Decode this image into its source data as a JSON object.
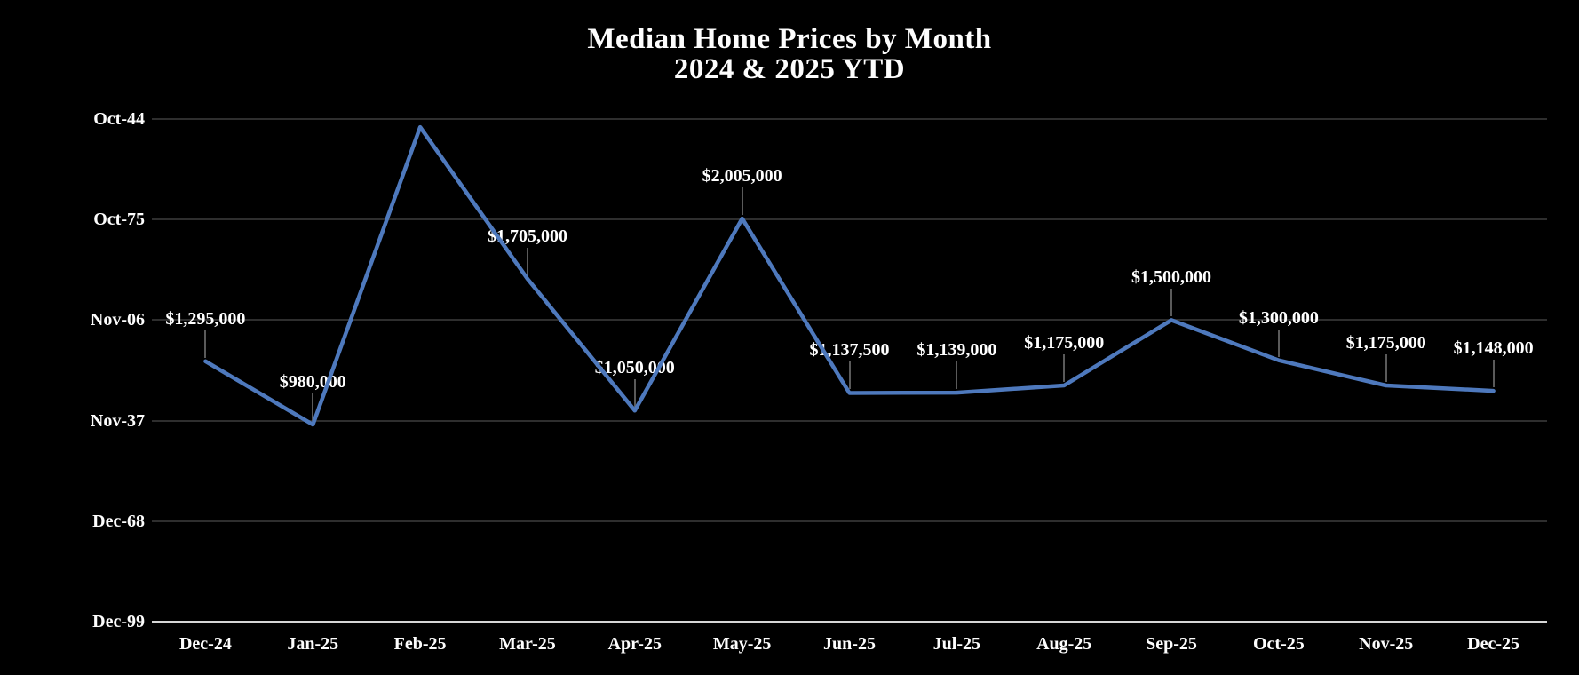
{
  "chart_data": {
    "type": "line",
    "title": "Median Home Prices by Month",
    "subtitle": "2024 & 2025 YTD",
    "categories": [
      "Dec-24",
      "Jan-25",
      "Feb-25",
      "Mar-25",
      "Apr-25",
      "May-25",
      "Jun-25",
      "Jul-25",
      "Aug-25",
      "Sep-25",
      "Oct-25",
      "Nov-25",
      "Dec-25"
    ],
    "values": [
      1295000,
      980000,
      2460000,
      1705000,
      1050000,
      2005000,
      1137500,
      1139000,
      1175000,
      1500000,
      1300000,
      1175000,
      1148000
    ],
    "estimated_indices": [
      2
    ],
    "data_labels": [
      "$1,295,000",
      "$980,000",
      "",
      "$1,705,000",
      "$1,050,000",
      "$2,005,000",
      "$1,137,500",
      "$1,139,000",
      "$1,175,000",
      "$1,500,000",
      "$1,300,000",
      "$1,175,000",
      "$1,148,000"
    ],
    "y_axis_ticks": [
      {
        "label": "Oct-44",
        "value": 2500000
      },
      {
        "label": "Oct-75",
        "value": 2000000
      },
      {
        "label": "Nov-06",
        "value": 1500000
      },
      {
        "label": "Nov-37",
        "value": 1000000
      },
      {
        "label": "Dec-68",
        "value": 500000
      },
      {
        "label": "Dec-99",
        "value": 0
      }
    ],
    "ylim": [
      0,
      2500000
    ],
    "gridlines": "horizontal",
    "legend": "none",
    "colors": {
      "background": "#000000",
      "text": "#fdfdfd",
      "line": "#4e79bd",
      "gridline": "#2e2e2e",
      "axis_line": "#d6d6d6",
      "leader_line": "#5a5a5a"
    }
  }
}
